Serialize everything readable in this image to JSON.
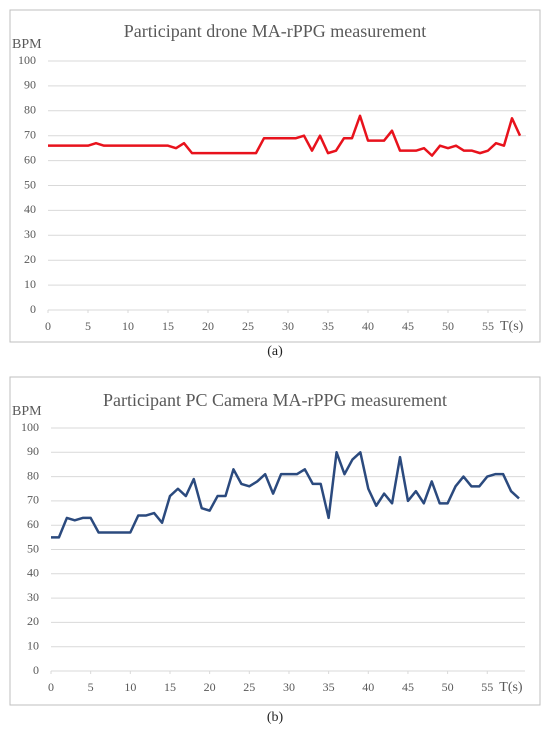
{
  "chart_data": [
    {
      "type": "line",
      "title": "Participant drone MA-rPPG measurement",
      "ylabel": "BPM",
      "xlabel": "T(s)",
      "caption": "(a)",
      "x": [
        0,
        1,
        2,
        3,
        4,
        5,
        6,
        7,
        8,
        9,
        10,
        11,
        12,
        13,
        14,
        15,
        16,
        17,
        18,
        19,
        20,
        21,
        22,
        23,
        24,
        25,
        26,
        27,
        28,
        29,
        30,
        31,
        32,
        33,
        34,
        35,
        36,
        37,
        38,
        39,
        40,
        41,
        42,
        43,
        44,
        45,
        46,
        47,
        48,
        49,
        50,
        51,
        52,
        53,
        54,
        55,
        56,
        57,
        58,
        59
      ],
      "series": [
        {
          "color": "#e8121c",
          "values": [
            66,
            66,
            66,
            66,
            66,
            66,
            67,
            66,
            66,
            66,
            66,
            66,
            66,
            66,
            66,
            66,
            65,
            67,
            63,
            63,
            63,
            63,
            63,
            63,
            63,
            63,
            63,
            69,
            69,
            69,
            69,
            69,
            70,
            64,
            70,
            63,
            64,
            69,
            69,
            78,
            68,
            68,
            68,
            72,
            64,
            64,
            64,
            65,
            62,
            66,
            65,
            66,
            64,
            64,
            63,
            64,
            67,
            66,
            77,
            70
          ]
        }
      ],
      "xlim": [
        0,
        59
      ],
      "xticks": [
        0,
        5,
        10,
        15,
        20,
        25,
        30,
        35,
        40,
        45,
        50,
        55
      ],
      "ylim": [
        0,
        100
      ],
      "yticks": [
        0,
        10,
        20,
        30,
        40,
        50,
        60,
        70,
        80,
        90,
        100
      ],
      "grid": true
    },
    {
      "type": "line",
      "title": "Participant PC Camera MA-rPPG measurement",
      "ylabel": "BPM",
      "xlabel": "T(s)",
      "caption": "(b)",
      "x": [
        0,
        1,
        2,
        3,
        4,
        5,
        6,
        7,
        8,
        9,
        10,
        11,
        12,
        13,
        14,
        15,
        16,
        17,
        18,
        19,
        20,
        21,
        22,
        23,
        24,
        25,
        26,
        27,
        28,
        29,
        30,
        31,
        32,
        33,
        34,
        35,
        36,
        37,
        38,
        39,
        40,
        41,
        42,
        43,
        44,
        45,
        46,
        47,
        48,
        49,
        50,
        51,
        52,
        53,
        54,
        55,
        56,
        57,
        58,
        59
      ],
      "series": [
        {
          "color": "#2b4a7e",
          "values": [
            55,
            55,
            63,
            62,
            63,
            63,
            57,
            57,
            57,
            57,
            57,
            64,
            64,
            65,
            61,
            72,
            75,
            72,
            79,
            67,
            66,
            72,
            72,
            83,
            77,
            76,
            78,
            81,
            73,
            81,
            81,
            81,
            83,
            77,
            77,
            63,
            90,
            81,
            87,
            90,
            75,
            68,
            73,
            69,
            88,
            70,
            74,
            69,
            78,
            69,
            69,
            76,
            80,
            76,
            76,
            80,
            81,
            81,
            74,
            71
          ]
        }
      ],
      "xlim": [
        0,
        59
      ],
      "xticks": [
        0,
        5,
        10,
        15,
        20,
        25,
        30,
        35,
        40,
        45,
        50,
        55
      ],
      "ylim": [
        0,
        100
      ],
      "yticks": [
        0,
        10,
        20,
        30,
        40,
        50,
        60,
        70,
        80,
        90,
        100
      ],
      "grid": true
    }
  ]
}
